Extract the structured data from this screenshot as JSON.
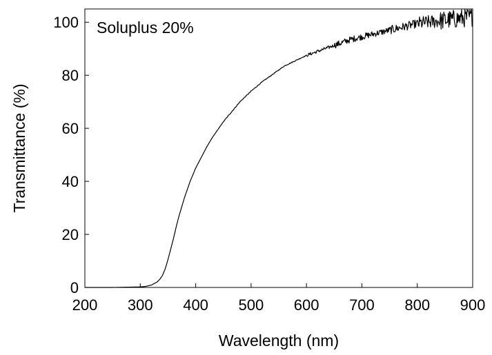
{
  "chart_data": {
    "type": "line",
    "title": "",
    "annotation": "Soluplus 20%",
    "xlabel": "Wavelength (nm)",
    "ylabel": "Transmittance (%)",
    "xlim": [
      200,
      900
    ],
    "ylim": [
      0,
      105
    ],
    "xticks": [
      200,
      300,
      400,
      500,
      600,
      700,
      800,
      900
    ],
    "yticks": [
      0,
      20,
      40,
      60,
      80,
      100
    ],
    "grid": false,
    "legend": "none",
    "series": [
      {
        "color": "#000000",
        "x": [
          200,
          250,
          300,
          310,
          320,
          330,
          335,
          340,
          345,
          350,
          355,
          360,
          365,
          370,
          375,
          380,
          385,
          390,
          395,
          400,
          410,
          420,
          430,
          440,
          450,
          460,
          470,
          480,
          490,
          500,
          520,
          540,
          560,
          580,
          600,
          620,
          640,
          660,
          680,
          700,
          720,
          740,
          760,
          780,
          800,
          820,
          840,
          860,
          880,
          900
        ],
        "y": [
          0,
          0,
          0.2,
          0.4,
          0.9,
          2.0,
          3.0,
          4.5,
          7.0,
          10.5,
          14.5,
          18.5,
          23.0,
          27.0,
          30.5,
          34.0,
          37.0,
          40.0,
          42.5,
          45.0,
          49.0,
          53.0,
          56.5,
          59.5,
          62.5,
          65.0,
          67.5,
          70.0,
          72.0,
          74.0,
          77.5,
          80.5,
          83.5,
          85.5,
          87.5,
          89.0,
          90.5,
          92.0,
          93.5,
          94.5,
          95.5,
          96.5,
          97.5,
          98.5,
          99.5,
          100.0,
          100.5,
          101.0,
          101.5,
          102.0
        ]
      }
    ]
  }
}
